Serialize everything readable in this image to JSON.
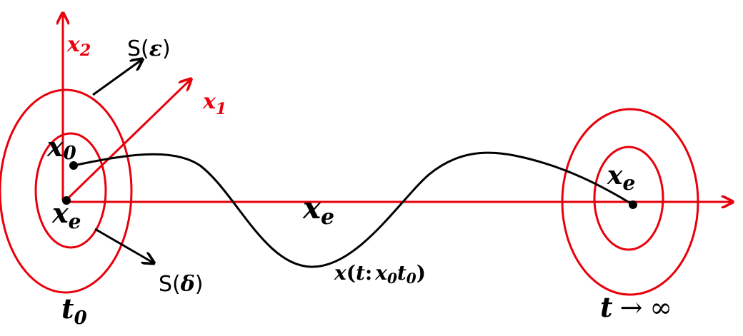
{
  "colors": {
    "axis": "#e8000b",
    "curve": "#000000",
    "label": "#000000"
  },
  "axes": {
    "x2": {
      "base": "x",
      "sub": "2"
    },
    "x1": {
      "base": "x",
      "sub": "1"
    }
  },
  "regions": {
    "s_epsilon": {
      "prefix": "S(",
      "symbol": "ε",
      "suffix": ")"
    },
    "s_delta": {
      "prefix": "S(",
      "symbol": "δ",
      "suffix": ")"
    }
  },
  "points": {
    "x0": {
      "base": "x",
      "sub": "0"
    },
    "xe_start": {
      "base": "x",
      "sub": "e"
    },
    "xe_mid": {
      "base": "x",
      "sub": "e"
    },
    "xe_end": {
      "base": "x",
      "sub": "e"
    }
  },
  "trajectory": {
    "x": "x",
    "open": "(",
    "t": "t",
    "colon": ":",
    "x0_base": "x",
    "x0_sub": "0",
    "t0_base": "t",
    "t0_sub": "0",
    "close": ")"
  },
  "time_labels": {
    "start": {
      "base": "t",
      "sub": "0"
    },
    "end": {
      "t": "t",
      "arrow": "→",
      "inf": "∞"
    }
  }
}
